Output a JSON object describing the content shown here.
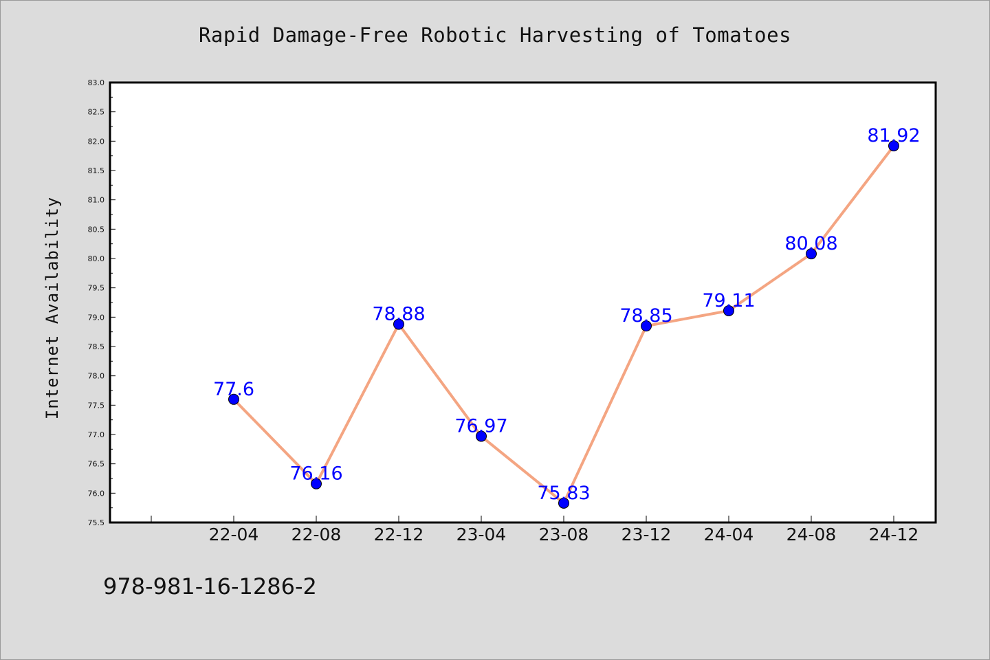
{
  "chart_data": {
    "type": "line",
    "title": "Rapid Damage-Free Robotic Harvesting of Tomatoes",
    "xlabel": "",
    "ylabel": "Internet Availability",
    "categories": [
      "22-04",
      "22-08",
      "22-12",
      "23-04",
      "23-08",
      "23-12",
      "24-04",
      "24-08",
      "24-12"
    ],
    "series": [
      {
        "values": [
          77.6,
          76.16,
          78.88,
          76.97,
          75.83,
          78.85,
          79.11,
          80.08,
          81.92
        ]
      }
    ],
    "data_labels": [
      "77.6",
      "76.16",
      "78.88",
      "76.97",
      "75.83",
      "78.85",
      "79.11",
      "80.08",
      "81.92"
    ],
    "ylim": [
      75.5,
      83.0
    ],
    "yticks": [
      "75.5",
      "76.0",
      "76.5",
      "77.0",
      "77.5",
      "78.0",
      "78.5",
      "79.0",
      "79.5",
      "80.0",
      "80.5",
      "81.0",
      "81.5",
      "82.0",
      "82.5",
      "83.0"
    ],
    "grid": false,
    "line_color": "#f4a582",
    "marker_color": "#0000ff",
    "label_color": "#0000ff"
  },
  "footer": {
    "text": "978-981-16-1286-2"
  }
}
